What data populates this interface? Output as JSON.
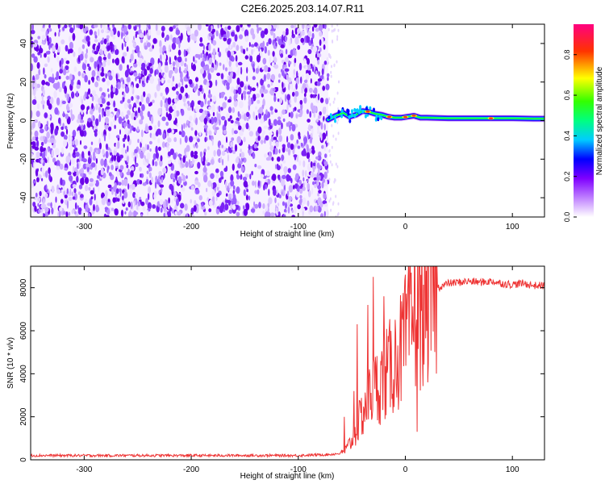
{
  "title": "C2E6.2025.203.14.07.R11",
  "colorbar": {
    "label": "Normalized spectral amplitude",
    "ticks": [
      0.0,
      0.2,
      0.4,
      0.6,
      0.8
    ],
    "tick_labels": [
      "0.0",
      "0.2",
      "0.4",
      "0.6",
      "0.8"
    ],
    "colors": [
      "#ffffff",
      "#7f00ff",
      "#0000ff",
      "#00ffff",
      "#00ff00",
      "#ffff00",
      "#ff0000",
      "#ff0080"
    ]
  },
  "chart_data": [
    {
      "type": "heatmap",
      "xlabel": "Height of straight line (km)",
      "ylabel": "Frequency (Hz)",
      "xlim": [
        -350,
        130
      ],
      "ylim": [
        -50,
        50
      ],
      "xticks": [
        -300,
        -200,
        -100,
        0,
        100
      ],
      "xtick_labels": [
        "-300",
        "-200",
        "-100",
        "0",
        "100"
      ],
      "yticks": [
        -40,
        -20,
        0,
        20,
        40
      ],
      "ytick_labels": [
        "-40",
        "-20",
        "0",
        "20",
        "40"
      ],
      "noise_region_x": [
        -350,
        -72
      ],
      "signal_line": {
        "x": [
          -72,
          -65,
          -58,
          -52,
          -46,
          -40,
          -34,
          -28,
          -22,
          -16,
          -10,
          -4,
          2,
          8,
          14,
          20,
          40,
          60,
          80,
          100,
          120,
          130
        ],
        "hz": [
          0.5,
          2.5,
          4.0,
          2.0,
          3.0,
          5.0,
          4.5,
          3.5,
          3.0,
          2.0,
          1.5,
          1.5,
          2.0,
          2.5,
          1.5,
          1.5,
          1.2,
          1.2,
          1.2,
          1.2,
          1.0,
          1.0
        ]
      },
      "peak_amplitude_x": [
        -35,
        -15,
        0,
        8,
        80
      ]
    },
    {
      "type": "line",
      "xlabel": "Height of straight line (km)",
      "ylabel": "SNR (10 * v/v)",
      "xlim": [
        -350,
        130
      ],
      "ylim": [
        0,
        9000
      ],
      "xticks": [
        -300,
        -200,
        -100,
        0,
        100
      ],
      "xtick_labels": [
        "-300",
        "-200",
        "-100",
        "0",
        "100"
      ],
      "yticks": [
        0,
        2000,
        4000,
        6000,
        8000
      ],
      "ytick_labels": [
        "0",
        "2000",
        "4000",
        "6000",
        "8000"
      ],
      "series": [
        {
          "color": "#ee3333",
          "x": [
            -350,
            -300,
            -250,
            -200,
            -150,
            -100,
            -70,
            -60,
            -55,
            -50,
            -45,
            -40,
            -35,
            -30,
            -25,
            -20,
            -15,
            -10,
            -5,
            0,
            5,
            10,
            15,
            20,
            25,
            30,
            35,
            40,
            50,
            60,
            70,
            80,
            90,
            100,
            110,
            120,
            130
          ],
          "y": [
            200,
            200,
            200,
            200,
            200,
            200,
            250,
            300,
            500,
            900,
            1500,
            2200,
            2800,
            3200,
            3500,
            3800,
            4200,
            4600,
            5000,
            5600,
            6200,
            6800,
            7200,
            7500,
            7800,
            8000,
            8100,
            8200,
            8250,
            8300,
            8250,
            8300,
            8200,
            8150,
            8200,
            8100,
            8100
          ]
        }
      ],
      "spikes": [
        {
          "x": -57,
          "y": 2000
        },
        {
          "x": -48,
          "y": 3200
        },
        {
          "x": -45,
          "y": 6300
        },
        {
          "x": -35,
          "y": 7200
        },
        {
          "x": -30,
          "y": 8500
        },
        {
          "x": -20,
          "y": 7600
        },
        {
          "x": -5,
          "y": 5800
        },
        {
          "x": 5,
          "y": 7700
        },
        {
          "x": 9,
          "y": 8900
        },
        {
          "x": 11,
          "y": 1300
        }
      ]
    }
  ]
}
